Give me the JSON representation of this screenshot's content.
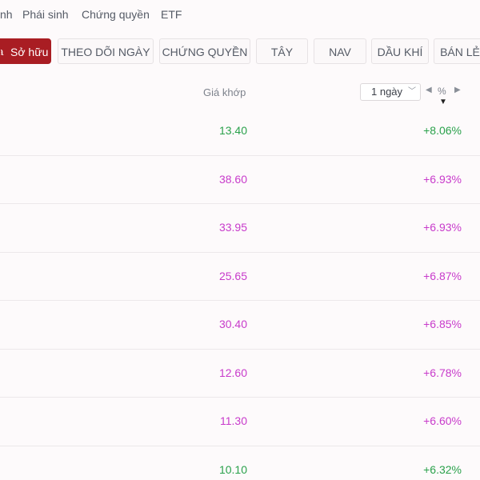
{
  "topnav": {
    "items": [
      {
        "label": "nh"
      },
      {
        "label": "Phái sinh"
      },
      {
        "label": "Chứng quyền"
      },
      {
        "label": "ETF"
      }
    ]
  },
  "chips": {
    "items": [
      {
        "label": "Sở hữu",
        "active": true,
        "lead": "a"
      },
      {
        "label": "THEO DÕI NGÀY"
      },
      {
        "label": "CHỨNG QUYỀN"
      },
      {
        "label": "TÂY"
      },
      {
        "label": "NAV"
      },
      {
        "label": "DẦU KHÍ"
      },
      {
        "label": "BÁN LẺ"
      }
    ]
  },
  "table": {
    "price_header": "Giá khớp",
    "period": "1 ngày",
    "change_unit": "%",
    "rows": [
      {
        "price": "13.40",
        "change": "+8.06%",
        "status": "up"
      },
      {
        "price": "38.60",
        "change": "+6.93%",
        "status": "ceiling"
      },
      {
        "price": "33.95",
        "change": "+6.93%",
        "status": "ceiling"
      },
      {
        "price": "25.65",
        "change": "+6.87%",
        "status": "ceiling"
      },
      {
        "price": "30.40",
        "change": "+6.85%",
        "status": "ceiling"
      },
      {
        "price": "12.60",
        "change": "+6.78%",
        "status": "ceiling"
      },
      {
        "price": "11.30",
        "change": "+6.60%",
        "status": "ceiling"
      },
      {
        "price": "10.10",
        "change": "+6.32%",
        "status": "up"
      }
    ]
  },
  "colors": {
    "up": "#2aa14b",
    "ceiling": "#c83bcb",
    "brand": "#a91d23"
  },
  "icons": {
    "period_dropdown": "chevron-down-icon",
    "prev_period": "caret-left-icon",
    "next_period": "caret-right-icon",
    "sort": "sort-desc-icon"
  }
}
